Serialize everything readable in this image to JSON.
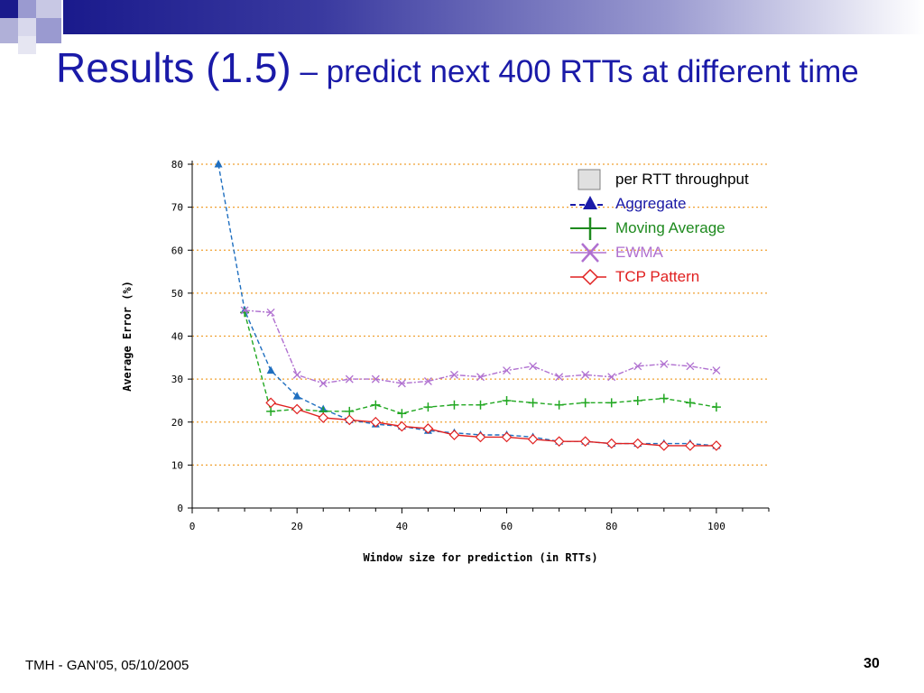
{
  "slide": {
    "title_main": "Results (1.5)",
    "title_sub": " – predict next 400 RTTs at different time",
    "footer": "TMH - GAN'05, 05/10/2005",
    "page_number": "30"
  },
  "colors": {
    "title": "#1a1aa8",
    "aggregate": "#1f6fc0",
    "moving_average": "#22a822",
    "ewma": "#b070d0",
    "tcp_pattern": "#e02020",
    "grid": "#f0a030"
  },
  "legend": [
    {
      "label": "per RTT throughput",
      "color": "#000000",
      "symbol": "box"
    },
    {
      "label": "Aggregate",
      "color": "#1a1aa8",
      "symbol": "triangle"
    },
    {
      "label": "Moving Average",
      "color": "#1e8a1e",
      "symbol": "plus"
    },
    {
      "label": "EWMA",
      "color": "#b070d0",
      "symbol": "cross"
    },
    {
      "label": "TCP Pattern",
      "color": "#e02020",
      "symbol": "diamond"
    }
  ],
  "chart_data": {
    "type": "line",
    "xlabel": "Window size for prediction (in RTTs)",
    "ylabel": "Average Error (%)",
    "xlim": [
      0,
      110
    ],
    "ylim": [
      0,
      80
    ],
    "xticks": [
      "0",
      "20",
      "40",
      "60",
      "80",
      "100"
    ],
    "yticks": [
      "0",
      "10",
      "20",
      "30",
      "40",
      "50",
      "60",
      "70",
      "80"
    ],
    "grid": "horizontal dotted",
    "legend_position": "top-right",
    "series": [
      {
        "name": "Aggregate",
        "marker": "triangle",
        "dash": "5,3",
        "x": [
          5,
          10,
          15,
          20,
          25,
          30,
          35,
          40,
          45,
          50,
          55,
          60,
          65,
          70,
          75,
          80,
          85,
          90,
          95,
          100
        ],
        "y": [
          80,
          46,
          32,
          26,
          23,
          20.5,
          19.5,
          19,
          18,
          17.5,
          17,
          17,
          16.5,
          15.5,
          15.5,
          15,
          15,
          15,
          15,
          14.5
        ]
      },
      {
        "name": "Moving Average",
        "marker": "plus",
        "dash": "5,3",
        "x": [
          10,
          15,
          20,
          25,
          30,
          35,
          40,
          45,
          50,
          55,
          60,
          65,
          70,
          75,
          80,
          85,
          90,
          95,
          100
        ],
        "y": [
          45.5,
          22.5,
          23,
          22.5,
          22.5,
          24,
          22,
          23.5,
          24,
          24,
          25,
          24.5,
          24,
          24.5,
          24.5,
          25,
          25.5,
          24.5,
          23.5
        ]
      },
      {
        "name": "EWMA",
        "marker": "cross",
        "dash": "6,2,2,2",
        "x": [
          10,
          15,
          20,
          25,
          30,
          35,
          40,
          45,
          50,
          55,
          60,
          65,
          70,
          75,
          80,
          85,
          90,
          95,
          100
        ],
        "y": [
          46,
          45.5,
          31,
          29,
          30,
          30,
          29,
          29.5,
          31,
          30.5,
          32,
          33,
          30.5,
          31,
          30.5,
          33,
          33.5,
          33,
          32
        ]
      },
      {
        "name": "TCP Pattern",
        "marker": "diamond",
        "dash": "",
        "x": [
          15,
          20,
          25,
          30,
          35,
          40,
          45,
          50,
          55,
          60,
          65,
          70,
          75,
          80,
          85,
          90,
          95,
          100
        ],
        "y": [
          24.5,
          23,
          21,
          20.5,
          20,
          19,
          18.5,
          17,
          16.5,
          16.5,
          16,
          15.5,
          15.5,
          15,
          15,
          14.5,
          14.5,
          14.5
        ]
      }
    ]
  }
}
